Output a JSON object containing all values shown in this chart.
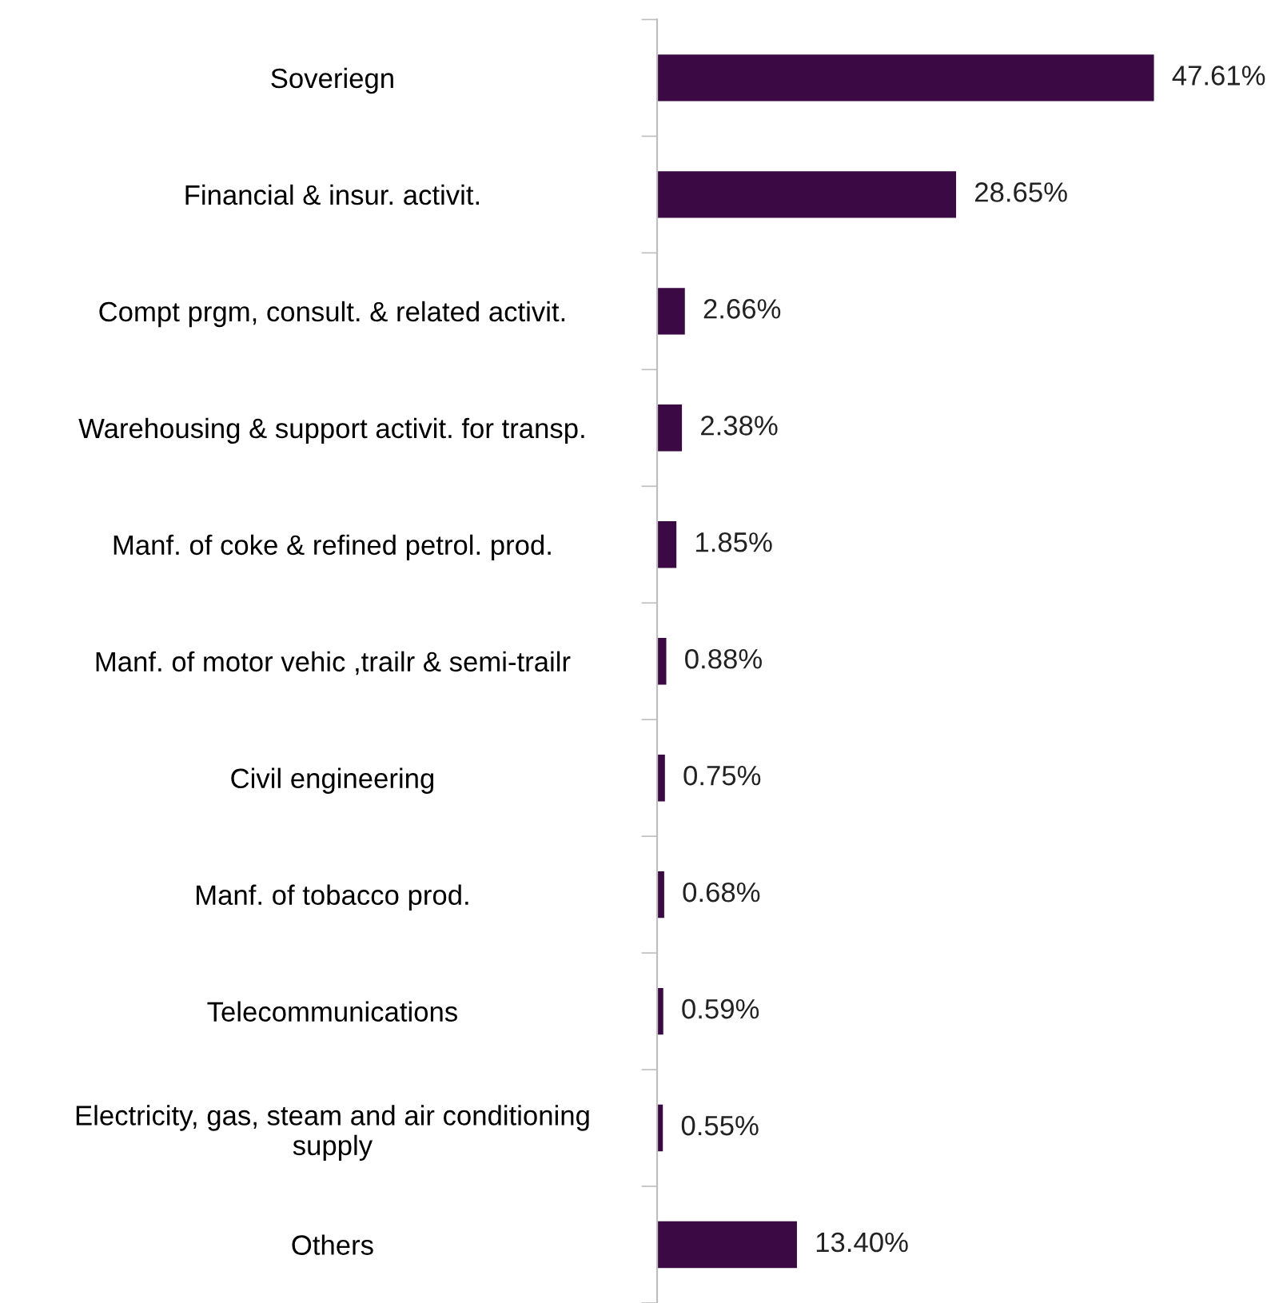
{
  "chart_data": {
    "type": "bar",
    "orientation": "horizontal",
    "data_labels": true,
    "value_labels": [
      "47.61%",
      "28.65%",
      "2.66%",
      "2.38%",
      "1.85%",
      "0.88%",
      "0.75%",
      "0.68%",
      "0.59%",
      "0.55%",
      "13.40%"
    ],
    "categories": [
      "Soveriegn",
      "Financial & insur. activit.",
      "Compt prgm, consult. & related activit.",
      "Warehousing & support activit. for transp.",
      "Manf. of coke & refined petrol. prod.",
      "Manf. of motor vehic ,trailr & semi-trailr",
      "Civil engineering",
      "Manf. of tobacco prod.",
      "Telecommunications",
      "Electricity, gas, steam and air conditioning\nsupply",
      "Others"
    ],
    "values": [
      47.61,
      28.65,
      2.66,
      2.38,
      1.85,
      0.88,
      0.75,
      0.68,
      0.59,
      0.55,
      13.4
    ],
    "color": "#3b0a45",
    "grid": false,
    "legend": false
  }
}
